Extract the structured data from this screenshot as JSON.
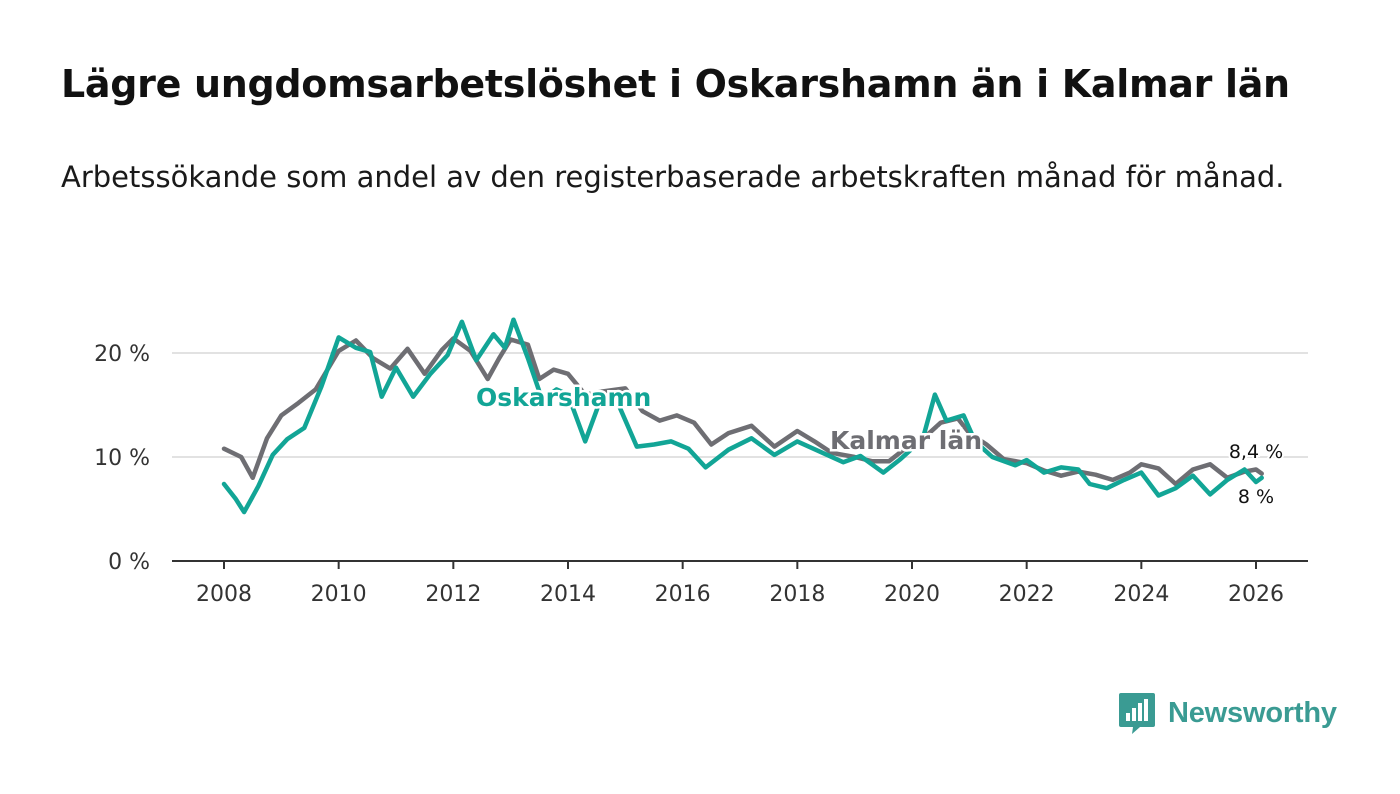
{
  "header": {
    "title": "Lägre ungdomsarbetslöshet i Oskarshamn än i Kalmar län",
    "subtitle": "Arbetssökande som andel av den registerbaserade arbetskraften månad för månad."
  },
  "logo": {
    "text": "Newsworthy",
    "icon": "newsworthy-logo-icon",
    "color": "#3a9b93"
  },
  "chart_data": {
    "type": "line",
    "title": "Lägre ungdomsarbetslöshet i Oskarshamn än i Kalmar län",
    "subtitle": "Arbetssökande som andel av den registerbaserade arbetskraften månad för månad.",
    "xlabel": "",
    "ylabel": "",
    "xlim": [
      2008,
      2026
    ],
    "ylim": [
      0,
      20
    ],
    "x_ticks": [
      2008,
      2010,
      2012,
      2014,
      2016,
      2018,
      2020,
      2022,
      2024,
      2026
    ],
    "y_ticks": [
      0,
      10,
      20
    ],
    "y_tick_labels": [
      "0 %",
      "10 %",
      "20 %"
    ],
    "grid": "horizontal",
    "series": [
      {
        "name": "Kalmar län",
        "label": "Kalmar län",
        "color": "#6e6e73",
        "end_label": "8,4 %",
        "points": [
          [
            2008.0,
            10.8
          ],
          [
            2008.3,
            10.0
          ],
          [
            2008.5,
            8.0
          ],
          [
            2008.75,
            11.8
          ],
          [
            2009.0,
            14.0
          ],
          [
            2009.3,
            15.2
          ],
          [
            2009.6,
            16.5
          ],
          [
            2010.0,
            20.2
          ],
          [
            2010.3,
            21.2
          ],
          [
            2010.6,
            19.5
          ],
          [
            2010.9,
            18.5
          ],
          [
            2011.2,
            20.4
          ],
          [
            2011.5,
            18.0
          ],
          [
            2011.8,
            20.3
          ],
          [
            2012.0,
            21.4
          ],
          [
            2012.3,
            20.2
          ],
          [
            2012.6,
            17.5
          ],
          [
            2012.8,
            19.5
          ],
          [
            2013.0,
            21.3
          ],
          [
            2013.3,
            20.8
          ],
          [
            2013.5,
            17.5
          ],
          [
            2013.75,
            18.4
          ],
          [
            2014.0,
            18.0
          ],
          [
            2014.3,
            16.0
          ],
          [
            2014.6,
            16.3
          ],
          [
            2015.0,
            16.6
          ],
          [
            2015.3,
            14.4
          ],
          [
            2015.6,
            13.5
          ],
          [
            2015.9,
            14.0
          ],
          [
            2016.2,
            13.3
          ],
          [
            2016.5,
            11.2
          ],
          [
            2016.8,
            12.3
          ],
          [
            2017.2,
            13.0
          ],
          [
            2017.6,
            11.0
          ],
          [
            2018.0,
            12.5
          ],
          [
            2018.3,
            11.5
          ],
          [
            2018.6,
            10.4
          ],
          [
            2019.0,
            10.0
          ],
          [
            2019.3,
            9.6
          ],
          [
            2019.6,
            9.6
          ],
          [
            2019.9,
            10.9
          ],
          [
            2020.2,
            11.8
          ],
          [
            2020.5,
            13.3
          ],
          [
            2020.8,
            13.7
          ],
          [
            2021.0,
            12.3
          ],
          [
            2021.3,
            11.2
          ],
          [
            2021.6,
            9.8
          ],
          [
            2022.0,
            9.4
          ],
          [
            2022.3,
            8.7
          ],
          [
            2022.6,
            8.2
          ],
          [
            2022.9,
            8.6
          ],
          [
            2023.2,
            8.3
          ],
          [
            2023.5,
            7.8
          ],
          [
            2023.8,
            8.5
          ],
          [
            2024.0,
            9.3
          ],
          [
            2024.3,
            8.9
          ],
          [
            2024.6,
            7.4
          ],
          [
            2024.9,
            8.8
          ],
          [
            2025.2,
            9.3
          ],
          [
            2025.5,
            8.0
          ],
          [
            2025.8,
            8.6
          ],
          [
            2026.0,
            8.8
          ],
          [
            2026.1,
            8.4
          ]
        ]
      },
      {
        "name": "Oskarshamn",
        "label": "Oskarshamn",
        "color": "#12a596",
        "end_label": "8 %",
        "points": [
          [
            2008.0,
            7.4
          ],
          [
            2008.2,
            6.0
          ],
          [
            2008.35,
            4.7
          ],
          [
            2008.6,
            7.2
          ],
          [
            2008.85,
            10.2
          ],
          [
            2009.1,
            11.7
          ],
          [
            2009.4,
            12.8
          ],
          [
            2009.7,
            16.8
          ],
          [
            2010.0,
            21.5
          ],
          [
            2010.3,
            20.5
          ],
          [
            2010.55,
            20.1
          ],
          [
            2010.75,
            15.8
          ],
          [
            2011.0,
            18.6
          ],
          [
            2011.3,
            15.8
          ],
          [
            2011.6,
            18.0
          ],
          [
            2011.9,
            19.8
          ],
          [
            2012.15,
            23.0
          ],
          [
            2012.4,
            19.3
          ],
          [
            2012.7,
            21.8
          ],
          [
            2012.9,
            20.5
          ],
          [
            2013.05,
            23.2
          ],
          [
            2013.3,
            19.5
          ],
          [
            2013.55,
            15.5
          ],
          [
            2013.8,
            16.5
          ],
          [
            2014.0,
            16.0
          ],
          [
            2014.3,
            11.5
          ],
          [
            2014.6,
            16.0
          ],
          [
            2014.9,
            14.8
          ],
          [
            2015.2,
            11.0
          ],
          [
            2015.5,
            11.2
          ],
          [
            2015.8,
            11.5
          ],
          [
            2016.1,
            10.8
          ],
          [
            2016.4,
            9.0
          ],
          [
            2016.8,
            10.7
          ],
          [
            2017.2,
            11.8
          ],
          [
            2017.6,
            10.2
          ],
          [
            2018.0,
            11.5
          ],
          [
            2018.4,
            10.5
          ],
          [
            2018.8,
            9.5
          ],
          [
            2019.1,
            10.1
          ],
          [
            2019.5,
            8.5
          ],
          [
            2019.8,
            9.8
          ],
          [
            2020.0,
            10.8
          ],
          [
            2020.2,
            12.0
          ],
          [
            2020.4,
            16.0
          ],
          [
            2020.6,
            13.5
          ],
          [
            2020.9,
            14.0
          ],
          [
            2021.1,
            11.5
          ],
          [
            2021.4,
            10.0
          ],
          [
            2021.8,
            9.2
          ],
          [
            2022.0,
            9.7
          ],
          [
            2022.3,
            8.5
          ],
          [
            2022.6,
            9.0
          ],
          [
            2022.9,
            8.8
          ],
          [
            2023.1,
            7.4
          ],
          [
            2023.4,
            7.0
          ],
          [
            2023.7,
            7.8
          ],
          [
            2024.0,
            8.5
          ],
          [
            2024.3,
            6.3
          ],
          [
            2024.6,
            7.0
          ],
          [
            2024.9,
            8.2
          ],
          [
            2025.2,
            6.4
          ],
          [
            2025.5,
            7.8
          ],
          [
            2025.8,
            8.8
          ],
          [
            2026.0,
            7.6
          ],
          [
            2026.1,
            8.0
          ]
        ]
      }
    ]
  }
}
